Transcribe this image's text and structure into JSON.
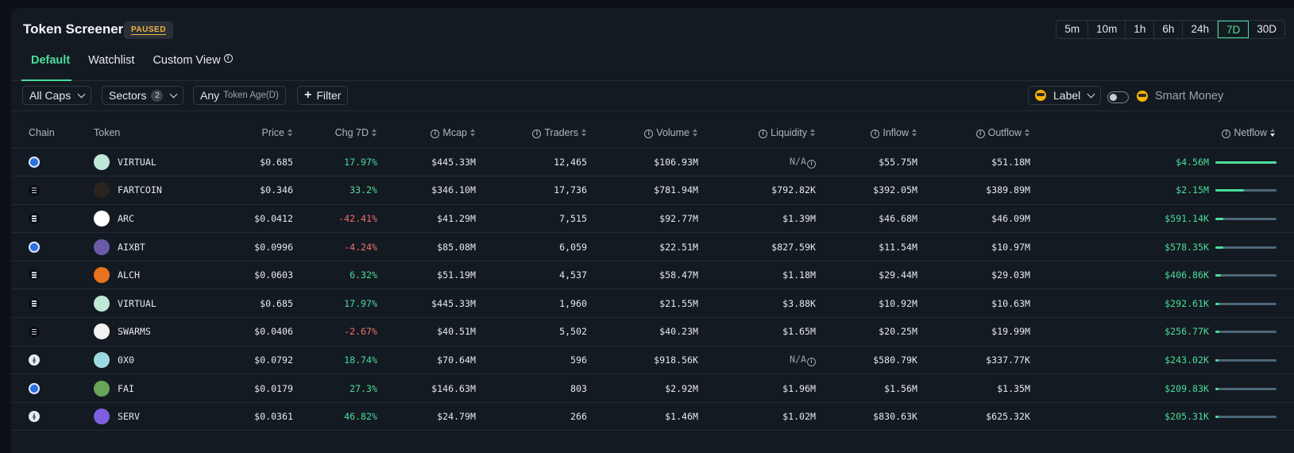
{
  "header": {
    "title": "Token Screener",
    "status_badge": "PAUSED",
    "tabs": [
      {
        "label": "Default",
        "active": true
      },
      {
        "label": "Watchlist",
        "active": false
      },
      {
        "label": "Custom View",
        "active": false
      }
    ],
    "timeframes": [
      "5m",
      "10m",
      "1h",
      "6h",
      "24h",
      "7D",
      "30D"
    ],
    "active_timeframe": "7D"
  },
  "filters": {
    "caps": "All Caps",
    "sectors": "Sectors",
    "sectors_count": "2",
    "token_age_value": "Any",
    "token_age_label": "Token Age(D)",
    "add_filter": "Filter",
    "label": "Label",
    "smart_money": "Smart Money",
    "smart_money_enabled": false
  },
  "table": {
    "columns": [
      "Chain",
      "Token",
      "Price",
      "Chg 7D",
      "Mcap",
      "Traders",
      "Volume",
      "Liquidity",
      "Inflow",
      "Outflow",
      "Netflow"
    ],
    "rows": [
      {
        "chain": "base",
        "token": "VIRTUAL",
        "icon_color": "#bfe8d6",
        "price": "$0.685",
        "chg": "17.97%",
        "dir": "pos",
        "mcap": "$445.33M",
        "traders": "12,465",
        "volume": "$106.93M",
        "liquidity": "N/A",
        "inflow": "$55.75M",
        "outflow": "$51.18M",
        "netflow": "$4.56M",
        "netflow_share": 1.0
      },
      {
        "chain": "solana",
        "token": "FARTCOIN",
        "icon_color": "#2a2420",
        "price": "$0.346",
        "chg": "33.2%",
        "dir": "pos",
        "mcap": "$346.10M",
        "traders": "17,736",
        "volume": "$781.94M",
        "liquidity": "$792.82K",
        "inflow": "$392.05M",
        "outflow": "$389.89M",
        "netflow": "$2.15M",
        "netflow_share": 0.47
      },
      {
        "chain": "solana",
        "token": "ARC",
        "icon_color": "#ffffff",
        "price": "$0.0412",
        "chg": "-42.41%",
        "dir": "neg",
        "mcap": "$41.29M",
        "traders": "7,515",
        "volume": "$92.77M",
        "liquidity": "$1.39M",
        "inflow": "$46.68M",
        "outflow": "$46.09M",
        "netflow": "$591.14K",
        "netflow_share": 0.13
      },
      {
        "chain": "base",
        "token": "AIXBT",
        "icon_color": "#6b5aa8",
        "price": "$0.0996",
        "chg": "-4.24%",
        "dir": "neg",
        "mcap": "$85.08M",
        "traders": "6,059",
        "volume": "$22.51M",
        "liquidity": "$827.59K",
        "inflow": "$11.54M",
        "outflow": "$10.97M",
        "netflow": "$578.35K",
        "netflow_share": 0.13
      },
      {
        "chain": "solana",
        "token": "ALCH",
        "icon_color": "#e8731e",
        "price": "$0.0603",
        "chg": "6.32%",
        "dir": "pos",
        "mcap": "$51.19M",
        "traders": "4,537",
        "volume": "$58.47M",
        "liquidity": "$1.18M",
        "inflow": "$29.44M",
        "outflow": "$29.03M",
        "netflow": "$406.86K",
        "netflow_share": 0.09
      },
      {
        "chain": "solana",
        "token": "VIRTUAL",
        "icon_color": "#bfe8d6",
        "price": "$0.685",
        "chg": "17.97%",
        "dir": "pos",
        "mcap": "$445.33M",
        "traders": "1,960",
        "volume": "$21.55M",
        "liquidity": "$3.88K",
        "inflow": "$10.92M",
        "outflow": "$10.63M",
        "netflow": "$292.61K",
        "netflow_share": 0.06
      },
      {
        "chain": "solana",
        "token": "SWARMS",
        "icon_color": "#f2f2f2",
        "price": "$0.0406",
        "chg": "-2.67%",
        "dir": "neg",
        "mcap": "$40.51M",
        "traders": "5,502",
        "volume": "$40.23M",
        "liquidity": "$1.65M",
        "inflow": "$20.25M",
        "outflow": "$19.99M",
        "netflow": "$256.77K",
        "netflow_share": 0.06
      },
      {
        "chain": "eth",
        "token": "0X0",
        "icon_color": "#9fd9e0",
        "price": "$0.0792",
        "chg": "18.74%",
        "dir": "pos",
        "mcap": "$70.64M",
        "traders": "596",
        "volume": "$918.56K",
        "liquidity": "N/A",
        "inflow": "$580.79K",
        "outflow": "$337.77K",
        "netflow": "$243.02K",
        "netflow_share": 0.05
      },
      {
        "chain": "base",
        "token": "FAI",
        "icon_color": "#6aa35a",
        "price": "$0.0179",
        "chg": "27.3%",
        "dir": "pos",
        "mcap": "$146.63M",
        "traders": "803",
        "volume": "$2.92M",
        "liquidity": "$1.96M",
        "inflow": "$1.56M",
        "outflow": "$1.35M",
        "netflow": "$209.83K",
        "netflow_share": 0.05
      },
      {
        "chain": "eth",
        "token": "SERV",
        "icon_color": "#7b5fe0",
        "price": "$0.0361",
        "chg": "46.82%",
        "dir": "pos",
        "mcap": "$24.79M",
        "traders": "266",
        "volume": "$1.46M",
        "liquidity": "$1.02M",
        "inflow": "$830.63K",
        "outflow": "$625.32K",
        "netflow": "$205.31K",
        "netflow_share": 0.05
      }
    ]
  }
}
